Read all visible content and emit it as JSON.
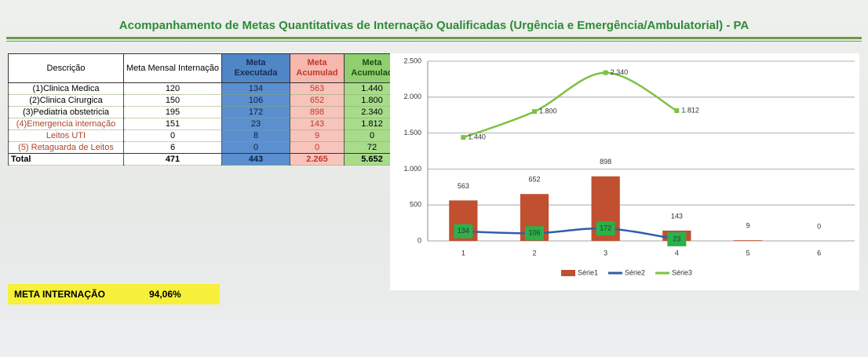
{
  "header": {
    "title": "Acompanhamento de Metas Quantitativas de Internação Qualificadas (Urgência e Emergência/Ambulatorial) - PA"
  },
  "table": {
    "headers": [
      "Descrição",
      "Meta Mensal Internação",
      "Meta Executada",
      "Meta Acumulad",
      "Meta Acumulad"
    ],
    "rows": [
      [
        "(1)Clinica Medica",
        "120",
        "134",
        "563",
        "1.440"
      ],
      [
        "(2)Clinica Cirurgica",
        "150",
        "106",
        "652",
        "1.800"
      ],
      [
        "(3)Pediatria obstetricia",
        "195",
        "172",
        "898",
        "2.340"
      ],
      [
        "(4)Emergencia internação",
        "151",
        "23",
        "143",
        "1.812"
      ],
      [
        "Leitos UTI",
        "0",
        "8",
        "9",
        "0"
      ],
      [
        "(5) Retaguarda de Leitos",
        "6",
        "0",
        "0",
        "72"
      ],
      [
        "Total",
        "471",
        "443",
        "2.265",
        "5.652"
      ]
    ]
  },
  "summary": {
    "label": "META INTERNAÇÃO",
    "value": "94,06%"
  },
  "chart_data": {
    "type": "bar-line",
    "categories": [
      "1",
      "2",
      "3",
      "4",
      "5",
      "6"
    ],
    "series": [
      {
        "name": "Série1",
        "color": "#c0502f",
        "kind": "bar",
        "values": [
          563,
          652,
          898,
          143,
          9,
          0
        ]
      },
      {
        "name": "Série2",
        "color": "#2f5fa8",
        "kind": "line",
        "values": [
          134,
          106,
          172,
          23,
          null,
          null
        ]
      },
      {
        "name": "Série3",
        "color": "#7dc242",
        "kind": "line",
        "values": [
          1440,
          1800,
          2340,
          1812,
          null,
          null
        ],
        "value_labels": [
          "1.440",
          "1.800",
          "2.340",
          "1.812",
          null,
          null
        ]
      }
    ],
    "ylim": [
      0,
      2500
    ],
    "yticks": [
      0,
      500,
      {
        "value": 1000,
        "label": "1.000"
      },
      {
        "value": 1500,
        "label": "1.500"
      },
      {
        "value": 2000,
        "label": "2.000"
      },
      {
        "value": 2500,
        "label": "2.500"
      }
    ],
    "grid": true,
    "legend": "bottom"
  }
}
